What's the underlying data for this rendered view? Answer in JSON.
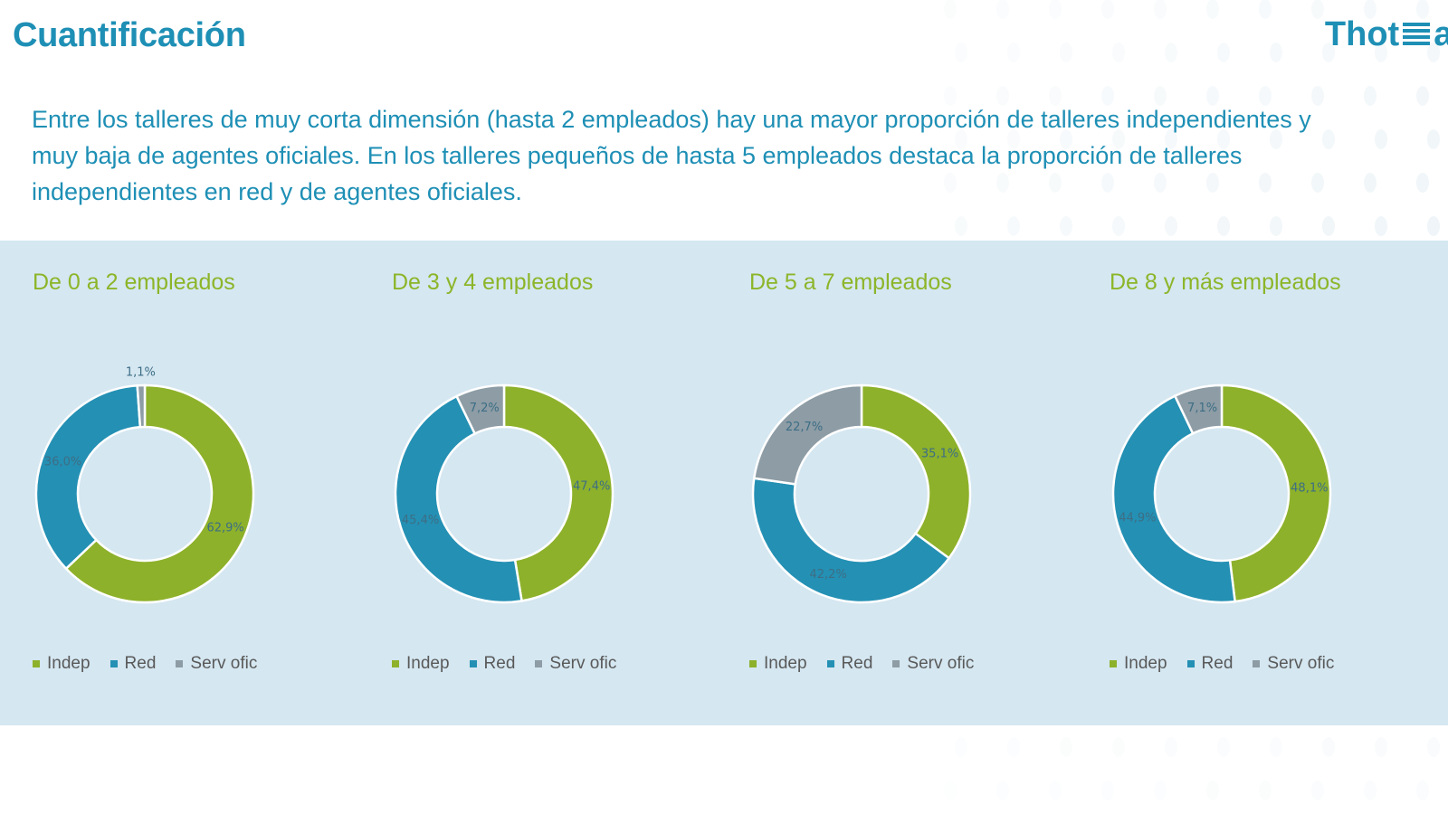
{
  "header": {
    "title": "Cuantificación",
    "logo_text_a": "Thot",
    "logo_text_b": "at",
    "logo_icon": "stacked-lines-icon"
  },
  "intro": "Entre los talleres de muy corta dimensión (hasta 2 empleados) hay una mayor proporción de talleres independientes y muy baja de agentes oficiales. En los talleres pequeños de hasta 5 empleados destaca la proporción de talleres independientes en red y de agentes oficiales.",
  "colors": {
    "brand": "#1e8fb5",
    "band": "#d5e7f1",
    "subtitle": "#8db529",
    "indep": "#8db12a",
    "red": "#2490b4",
    "serv_ofic": "#8d9ca5"
  },
  "chart_data": [
    {
      "type": "pie",
      "variant": "donut",
      "title": "De 0 a 2 empleados",
      "categories": [
        "Indep",
        "Red",
        "Serv ofic"
      ],
      "values": [
        62.9,
        36.0,
        1.1
      ],
      "labels": [
        "62,9%",
        "36,0%",
        "1,1%"
      ],
      "legend": "bottom"
    },
    {
      "type": "pie",
      "variant": "donut",
      "title": "De 3 y 4 empleados",
      "categories": [
        "Indep",
        "Red",
        "Serv ofic"
      ],
      "values": [
        47.4,
        45.4,
        7.2
      ],
      "labels": [
        "47,4%",
        "45,4%",
        "7,2%"
      ],
      "legend": "bottom"
    },
    {
      "type": "pie",
      "variant": "donut",
      "title": "De 5 a 7 empleados",
      "categories": [
        "Indep",
        "Red",
        "Serv ofic"
      ],
      "values": [
        35.1,
        42.2,
        22.7
      ],
      "labels": [
        "35,1%",
        "42,2%",
        "22,7%"
      ],
      "legend": "bottom"
    },
    {
      "type": "pie",
      "variant": "donut",
      "title": "De 8 y más empleados",
      "categories": [
        "Indep",
        "Red",
        "Serv ofic"
      ],
      "values": [
        48.1,
        44.9,
        7.1
      ],
      "labels": [
        "48,1%",
        "44,9%",
        "7,1%"
      ],
      "legend": "bottom"
    }
  ]
}
